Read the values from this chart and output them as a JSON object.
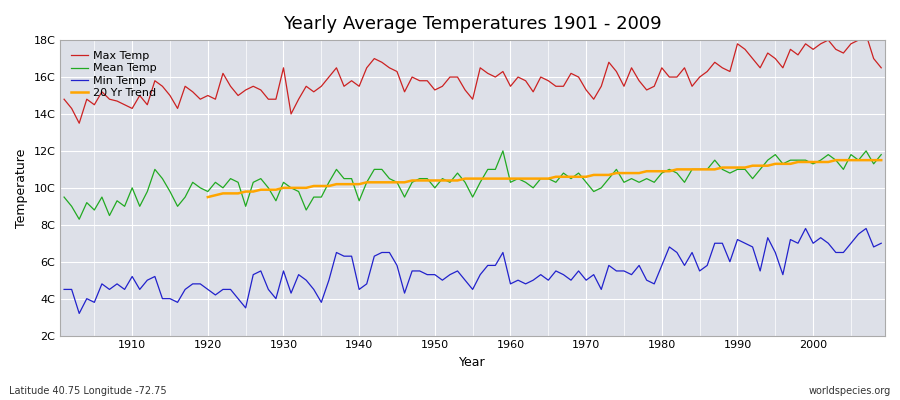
{
  "title": "Yearly Average Temperatures 1901 - 2009",
  "xlabel": "Year",
  "ylabel": "Temperature",
  "bottom_left_label": "Latitude 40.75 Longitude -72.75",
  "bottom_right_label": "worldspecies.org",
  "legend_labels": [
    "Max Temp",
    "Mean Temp",
    "Min Temp",
    "20 Yr Trend"
  ],
  "legend_colors": [
    "#cc0000",
    "#00aa00",
    "#0000cc",
    "#ffa500"
  ],
  "years": [
    1901,
    1902,
    1903,
    1904,
    1905,
    1906,
    1907,
    1908,
    1909,
    1910,
    1911,
    1912,
    1913,
    1914,
    1915,
    1916,
    1917,
    1918,
    1919,
    1920,
    1921,
    1922,
    1923,
    1924,
    1925,
    1926,
    1927,
    1928,
    1929,
    1930,
    1931,
    1932,
    1933,
    1934,
    1935,
    1936,
    1937,
    1938,
    1939,
    1940,
    1941,
    1942,
    1943,
    1944,
    1945,
    1946,
    1947,
    1948,
    1949,
    1950,
    1951,
    1952,
    1953,
    1954,
    1955,
    1956,
    1957,
    1958,
    1959,
    1960,
    1961,
    1962,
    1963,
    1964,
    1965,
    1966,
    1967,
    1968,
    1969,
    1970,
    1971,
    1972,
    1973,
    1974,
    1975,
    1976,
    1977,
    1978,
    1979,
    1980,
    1981,
    1982,
    1983,
    1984,
    1985,
    1986,
    1987,
    1988,
    1989,
    1990,
    1991,
    1992,
    1993,
    1994,
    1995,
    1996,
    1997,
    1998,
    1999,
    2000,
    2001,
    2002,
    2003,
    2004,
    2005,
    2006,
    2007,
    2008,
    2009
  ],
  "max_temp": [
    14.8,
    14.3,
    13.5,
    14.8,
    14.5,
    15.2,
    14.8,
    14.7,
    14.5,
    14.3,
    15.0,
    14.5,
    15.8,
    15.5,
    15.0,
    14.3,
    15.5,
    15.2,
    14.8,
    15.0,
    14.8,
    16.2,
    15.5,
    15.0,
    15.3,
    15.5,
    15.3,
    14.8,
    14.8,
    16.5,
    14.0,
    14.8,
    15.5,
    15.2,
    15.5,
    16.0,
    16.5,
    15.5,
    15.8,
    15.5,
    16.5,
    17.0,
    16.8,
    16.5,
    16.3,
    15.2,
    16.0,
    15.8,
    15.8,
    15.3,
    15.5,
    16.0,
    16.0,
    15.3,
    14.8,
    16.5,
    16.2,
    16.0,
    16.3,
    15.5,
    16.0,
    15.8,
    15.2,
    16.0,
    15.8,
    15.5,
    15.5,
    16.2,
    16.0,
    15.3,
    14.8,
    15.5,
    16.8,
    16.3,
    15.5,
    16.5,
    15.8,
    15.3,
    15.5,
    16.5,
    16.0,
    16.0,
    16.5,
    15.5,
    16.0,
    16.3,
    16.8,
    16.5,
    16.3,
    17.8,
    17.5,
    17.0,
    16.5,
    17.3,
    17.0,
    16.5,
    17.5,
    17.2,
    17.8,
    17.5,
    17.8,
    18.0,
    17.5,
    17.3,
    17.8,
    18.0,
    18.3,
    17.0,
    16.5
  ],
  "mean_temp": [
    9.5,
    9.0,
    8.3,
    9.2,
    8.8,
    9.5,
    8.5,
    9.3,
    9.0,
    10.0,
    9.0,
    9.8,
    11.0,
    10.5,
    9.8,
    9.0,
    9.5,
    10.3,
    10.0,
    9.8,
    10.3,
    10.0,
    10.5,
    10.3,
    9.0,
    10.3,
    10.5,
    10.0,
    9.3,
    10.3,
    10.0,
    9.8,
    8.8,
    9.5,
    9.5,
    10.3,
    11.0,
    10.5,
    10.5,
    9.3,
    10.3,
    11.0,
    11.0,
    10.5,
    10.3,
    9.5,
    10.3,
    10.5,
    10.5,
    10.0,
    10.5,
    10.3,
    10.8,
    10.3,
    9.5,
    10.3,
    11.0,
    11.0,
    12.0,
    10.3,
    10.5,
    10.3,
    10.0,
    10.5,
    10.5,
    10.3,
    10.8,
    10.5,
    10.8,
    10.3,
    9.8,
    10.0,
    10.5,
    11.0,
    10.3,
    10.5,
    10.3,
    10.5,
    10.3,
    10.8,
    11.0,
    10.8,
    10.3,
    11.0,
    11.0,
    11.0,
    11.5,
    11.0,
    10.8,
    11.0,
    11.0,
    10.5,
    11.0,
    11.5,
    11.8,
    11.3,
    11.5,
    11.5,
    11.5,
    11.3,
    11.5,
    11.8,
    11.5,
    11.0,
    11.8,
    11.5,
    12.0,
    11.3,
    11.8
  ],
  "min_temp": [
    4.5,
    4.5,
    3.2,
    4.0,
    3.8,
    4.8,
    4.5,
    4.8,
    4.5,
    5.2,
    4.5,
    5.0,
    5.2,
    4.0,
    4.0,
    3.8,
    4.5,
    4.8,
    4.8,
    4.5,
    4.2,
    4.5,
    4.5,
    4.0,
    3.5,
    5.3,
    5.5,
    4.5,
    4.0,
    5.5,
    4.3,
    5.3,
    5.0,
    4.5,
    3.8,
    5.0,
    6.5,
    6.3,
    6.3,
    4.5,
    4.8,
    6.3,
    6.5,
    6.5,
    5.8,
    4.3,
    5.5,
    5.5,
    5.3,
    5.3,
    5.0,
    5.3,
    5.5,
    5.0,
    4.5,
    5.3,
    5.8,
    5.8,
    6.5,
    4.8,
    5.0,
    4.8,
    5.0,
    5.3,
    5.0,
    5.5,
    5.3,
    5.0,
    5.5,
    5.0,
    5.3,
    4.5,
    5.8,
    5.5,
    5.5,
    5.3,
    5.8,
    5.0,
    4.8,
    5.8,
    6.8,
    6.5,
    5.8,
    6.5,
    5.5,
    5.8,
    7.0,
    7.0,
    6.0,
    7.2,
    7.0,
    6.8,
    5.5,
    7.3,
    6.5,
    5.3,
    7.2,
    7.0,
    7.8,
    7.0,
    7.3,
    7.0,
    6.5,
    6.5,
    7.0,
    7.5,
    7.8,
    6.8,
    7.0
  ],
  "trend_years": [
    1920,
    1921,
    1922,
    1923,
    1924,
    1925,
    1926,
    1927,
    1928,
    1929,
    1930,
    1931,
    1932,
    1933,
    1934,
    1935,
    1936,
    1937,
    1938,
    1939,
    1940,
    1941,
    1942,
    1943,
    1944,
    1945,
    1946,
    1947,
    1948,
    1949,
    1950,
    1951,
    1952,
    1953,
    1954,
    1955,
    1956,
    1957,
    1958,
    1959,
    1960,
    1961,
    1962,
    1963,
    1964,
    1965,
    1966,
    1967,
    1968,
    1969,
    1970,
    1971,
    1972,
    1973,
    1974,
    1975,
    1976,
    1977,
    1978,
    1979,
    1980,
    1981,
    1982,
    1983,
    1984,
    1985,
    1986,
    1987,
    1988,
    1989,
    1990,
    1991,
    1992,
    1993,
    1994,
    1995,
    1996,
    1997,
    1998,
    1999,
    2000,
    2001,
    2002,
    2003,
    2004,
    2005,
    2006,
    2007,
    2008,
    2009
  ],
  "trend": [
    9.5,
    9.6,
    9.7,
    9.7,
    9.7,
    9.8,
    9.8,
    9.9,
    9.9,
    9.9,
    10.0,
    10.0,
    10.0,
    10.0,
    10.1,
    10.1,
    10.1,
    10.2,
    10.2,
    10.2,
    10.2,
    10.3,
    10.3,
    10.3,
    10.3,
    10.3,
    10.3,
    10.4,
    10.4,
    10.4,
    10.4,
    10.4,
    10.4,
    10.4,
    10.5,
    10.5,
    10.5,
    10.5,
    10.5,
    10.5,
    10.5,
    10.5,
    10.5,
    10.5,
    10.5,
    10.5,
    10.6,
    10.6,
    10.6,
    10.6,
    10.6,
    10.7,
    10.7,
    10.7,
    10.8,
    10.8,
    10.8,
    10.8,
    10.9,
    10.9,
    10.9,
    10.9,
    11.0,
    11.0,
    11.0,
    11.0,
    11.0,
    11.0,
    11.1,
    11.1,
    11.1,
    11.1,
    11.2,
    11.2,
    11.2,
    11.3,
    11.3,
    11.3,
    11.4,
    11.4,
    11.4,
    11.4,
    11.4,
    11.5,
    11.5,
    11.5,
    11.5,
    11.5,
    11.5,
    11.5
  ],
  "ylim": [
    2,
    18
  ],
  "yticks": [
    2,
    4,
    6,
    8,
    10,
    12,
    14,
    16,
    18
  ],
  "ytick_labels": [
    "2C",
    "4C",
    "6C",
    "8C",
    "10C",
    "12C",
    "14C",
    "16C",
    "18C"
  ],
  "fig_bg_color": "#ffffff",
  "plot_bg_color": "#dde0e8",
  "line_color_max": "#cc2222",
  "line_color_mean": "#22aa22",
  "line_color_min": "#2222cc",
  "line_color_trend": "#ffa500",
  "grid_color": "#ffffff"
}
